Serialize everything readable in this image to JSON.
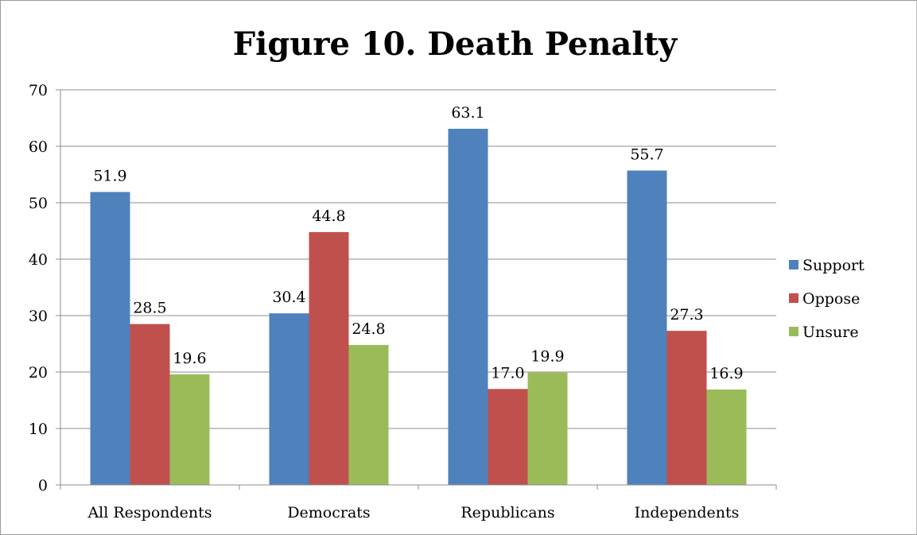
{
  "chart_data": {
    "type": "bar",
    "title": "Figure 10. Death Penalty",
    "categories": [
      "All Respondents",
      "Democrats",
      "Republicans",
      "Independents"
    ],
    "series": [
      {
        "name": "Support",
        "color": "#4F81BD",
        "values": [
          51.9,
          30.4,
          63.1,
          55.7
        ],
        "labels": [
          "51.9",
          "30.4",
          "63.1",
          "55.7"
        ]
      },
      {
        "name": "Oppose",
        "color": "#C0504D",
        "values": [
          28.5,
          44.8,
          17.0,
          27.3
        ],
        "labels": [
          "28.5",
          "44.8",
          "17.0",
          "27.3"
        ]
      },
      {
        "name": "Unsure",
        "color": "#9BBB59",
        "values": [
          19.6,
          24.8,
          19.9,
          16.9
        ],
        "labels": [
          "19.6",
          "24.8",
          "19.9",
          "16.9"
        ]
      }
    ],
    "ylim": [
      0,
      70
    ],
    "yticks": [
      "0",
      "10",
      "20",
      "30",
      "40",
      "50",
      "60",
      "70"
    ],
    "grid": true,
    "legend_position": "right"
  }
}
